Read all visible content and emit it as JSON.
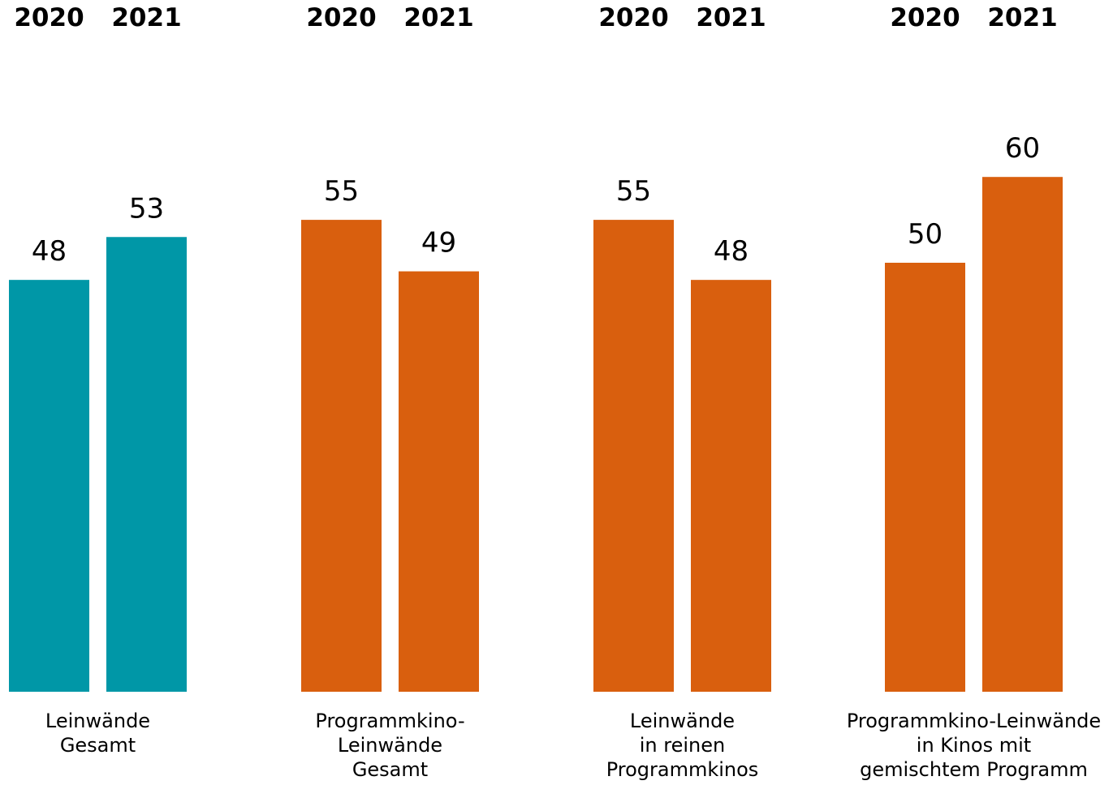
{
  "chart_data": {
    "type": "bar",
    "categories": [
      "Leinwände Gesamt",
      "Programmkino-Leinwände Gesamt",
      "Leinwände in reinen Programmkinos",
      "Programmkino-Leinwände in Kinos mit gemischtem Programm"
    ],
    "category_label_lines": [
      [
        "Leinwände",
        "Gesamt"
      ],
      [
        "Programmkino-",
        "Leinwände",
        "Gesamt"
      ],
      [
        "Leinwände",
        "in reinen",
        "Programmkinos"
      ],
      [
        "Programmkino-Leinwände",
        "in Kinos mit",
        "gemischtem Programm"
      ]
    ],
    "series": [
      {
        "name": "2020",
        "values": [
          48,
          55,
          55,
          50
        ]
      },
      {
        "name": "2021",
        "values": [
          53,
          49,
          48,
          60
        ]
      }
    ],
    "group_colors": [
      "#0097a7",
      "#d95f0e",
      "#d95f0e",
      "#d95f0e"
    ],
    "ylim": [
      0,
      60
    ],
    "grid": false,
    "legend": "year labels above each group",
    "title": "",
    "xlabel": "",
    "ylabel": ""
  }
}
